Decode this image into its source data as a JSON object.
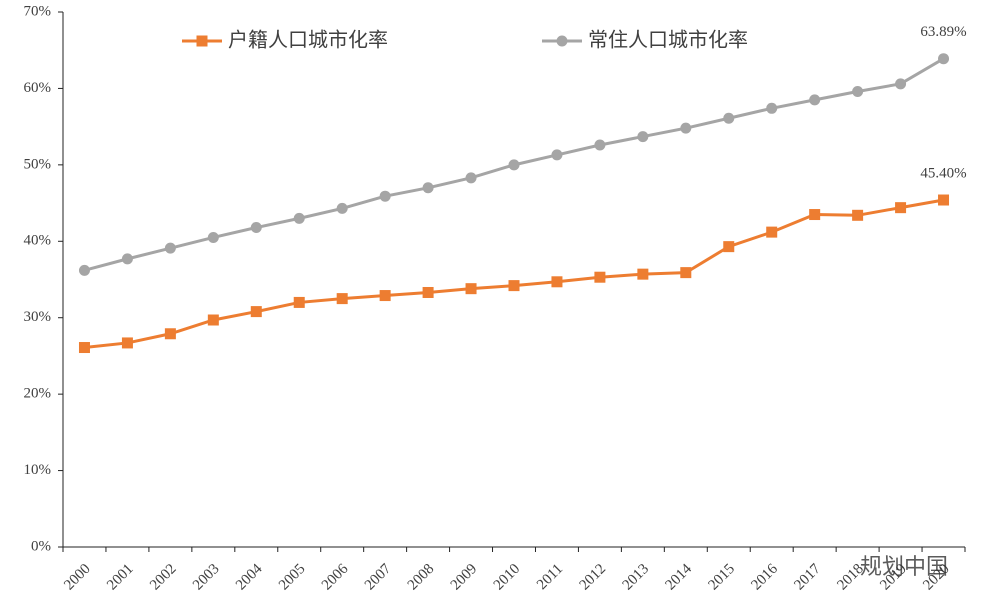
{
  "chart_data": {
    "type": "line",
    "categories": [
      "2000",
      "2001",
      "2002",
      "2003",
      "2004",
      "2005",
      "2006",
      "2007",
      "2008",
      "2009",
      "2010",
      "2011",
      "2012",
      "2013",
      "2014",
      "2015",
      "2016",
      "2017",
      "2018",
      "2019",
      "2020"
    ],
    "series": [
      {
        "name": "户籍人口城市化率",
        "color": "#ed7d31",
        "marker": "square",
        "values": [
          26.1,
          26.7,
          27.9,
          29.7,
          30.8,
          32.0,
          32.5,
          32.9,
          33.3,
          33.8,
          34.2,
          34.7,
          35.3,
          35.7,
          35.9,
          39.3,
          41.2,
          43.5,
          43.4,
          44.4,
          45.4
        ],
        "value_labels": [
          null,
          null,
          null,
          null,
          null,
          null,
          null,
          null,
          null,
          null,
          null,
          null,
          null,
          null,
          null,
          null,
          null,
          null,
          null,
          null,
          "45.40%"
        ]
      },
      {
        "name": "常住人口城市化率",
        "color": "#a5a5a5",
        "marker": "circle",
        "values": [
          36.2,
          37.7,
          39.1,
          40.5,
          41.8,
          43.0,
          44.3,
          45.9,
          47.0,
          48.3,
          50.0,
          51.3,
          52.6,
          53.7,
          54.8,
          56.1,
          57.4,
          58.5,
          59.6,
          60.6,
          63.89
        ],
        "value_labels": [
          null,
          null,
          null,
          null,
          null,
          null,
          null,
          null,
          null,
          null,
          null,
          null,
          null,
          null,
          null,
          null,
          null,
          null,
          null,
          null,
          "63.89%"
        ]
      }
    ],
    "ylim": [
      0,
      70
    ],
    "yticks": [
      {
        "value": 0,
        "label": "0%"
      },
      {
        "value": 10,
        "label": "10%"
      },
      {
        "value": 20,
        "label": "20%"
      },
      {
        "value": 30,
        "label": "30%"
      },
      {
        "value": 40,
        "label": "40%"
      },
      {
        "value": 50,
        "label": "50%"
      },
      {
        "value": 60,
        "label": "60%"
      },
      {
        "value": 70,
        "label": "70%"
      }
    ],
    "grid": false,
    "legend": "top",
    "watermark": "规划中国"
  }
}
